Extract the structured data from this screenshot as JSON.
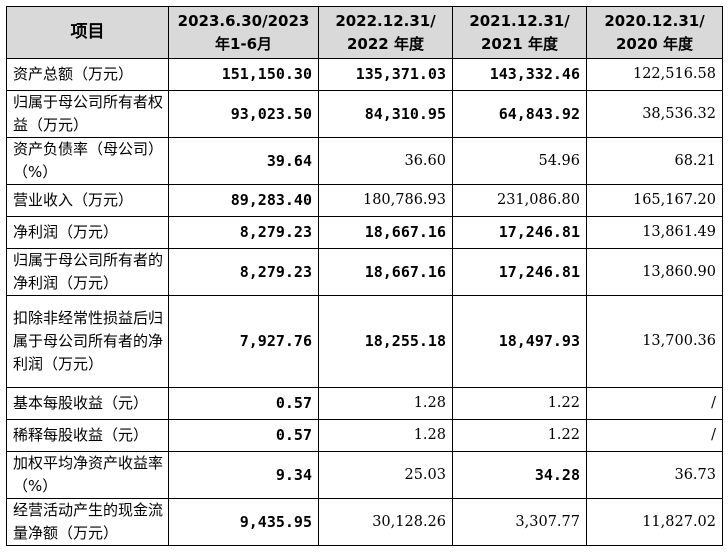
{
  "table": {
    "headers": [
      "项目",
      "2023.6.30/2023\n年1-6月",
      "2022.12.31/\n2022 年度",
      "2021.12.31/\n2021 年度",
      "2020.12.31/\n2020 年度"
    ],
    "rows": [
      {
        "label": "资产总额（万元）",
        "values": [
          "151,150.30",
          "135,371.03",
          "143,332.46",
          "122,516.58"
        ],
        "bold": [
          true,
          true,
          true,
          false
        ]
      },
      {
        "label": "归属于母公司所有者权益（万元）",
        "values": [
          "93,023.50",
          "84,310.95",
          "64,843.92",
          "38,536.32"
        ],
        "bold": [
          true,
          true,
          true,
          false
        ]
      },
      {
        "label": "资产负债率（母公司）（%）",
        "values": [
          "39.64",
          "36.60",
          "54.96",
          "68.21"
        ],
        "bold": [
          true,
          false,
          false,
          false
        ]
      },
      {
        "label": "营业收入（万元）",
        "values": [
          "89,283.40",
          "180,786.93",
          "231,086.80",
          "165,167.20"
        ],
        "bold": [
          true,
          false,
          false,
          false
        ]
      },
      {
        "label": "净利润（万元）",
        "values": [
          "8,279.23",
          "18,667.16",
          "17,246.81",
          "13,861.49"
        ],
        "bold": [
          true,
          true,
          true,
          false
        ]
      },
      {
        "label": "归属于母公司所有者的净利润（万元）",
        "values": [
          "8,279.23",
          "18,667.16",
          "17,246.81",
          "13,860.90"
        ],
        "bold": [
          true,
          true,
          true,
          false
        ]
      },
      {
        "label": "扣除非经常性损益后归属于母公司所有者的净利润（万元）",
        "values": [
          "7,927.76",
          "18,255.18",
          "18,497.93",
          "13,700.36"
        ],
        "bold": [
          true,
          true,
          true,
          false
        ]
      },
      {
        "label": "基本每股收益（元）",
        "values": [
          "0.57",
          "1.28",
          "1.22",
          "/"
        ],
        "bold": [
          true,
          false,
          false,
          false
        ]
      },
      {
        "label": "稀释每股收益（元）",
        "values": [
          "0.57",
          "1.28",
          "1.22",
          "/"
        ],
        "bold": [
          true,
          false,
          false,
          false
        ]
      },
      {
        "label": "加权平均净资产收益率（%）",
        "values": [
          "9.34",
          "25.03",
          "34.28",
          "36.73"
        ],
        "bold": [
          true,
          false,
          true,
          false
        ]
      },
      {
        "label": "经营活动产生的现金流量净额（万元）",
        "values": [
          "9,435.95",
          "30,128.26",
          "3,307.77",
          "11,827.02"
        ],
        "bold": [
          true,
          false,
          false,
          false
        ]
      }
    ]
  }
}
